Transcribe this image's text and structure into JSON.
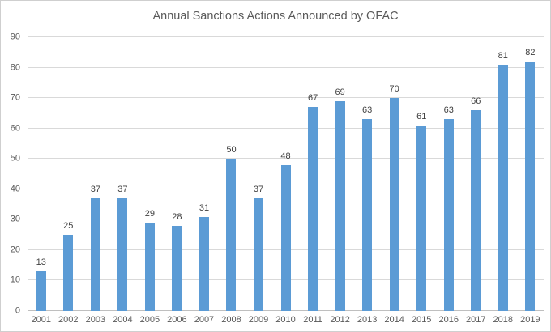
{
  "chart_data": {
    "type": "bar",
    "title": "Annual Sanctions Actions Announced by OFAC",
    "categories": [
      "2001",
      "2002",
      "2003",
      "2004",
      "2005",
      "2006",
      "2007",
      "2008",
      "2009",
      "2010",
      "2011",
      "2012",
      "2013",
      "2014",
      "2015",
      "2016",
      "2017",
      "2018",
      "2019"
    ],
    "values": [
      13,
      25,
      37,
      37,
      29,
      28,
      31,
      50,
      37,
      48,
      67,
      69,
      63,
      70,
      61,
      63,
      66,
      81,
      82
    ],
    "xlabel": "",
    "ylabel": "",
    "ylim": [
      0,
      90
    ],
    "yticks": [
      0,
      10,
      20,
      30,
      40,
      50,
      60,
      70,
      80,
      90
    ],
    "grid": "horizontal",
    "legend_position": "none",
    "data_labels": "above-bars",
    "colors": {
      "bar": "#5b9bd5",
      "data_label": "#404040",
      "axis_text": "#595959",
      "title_text": "#595959",
      "gridline": "#d9d9d9",
      "axis_line": "#bfbfbf"
    }
  }
}
